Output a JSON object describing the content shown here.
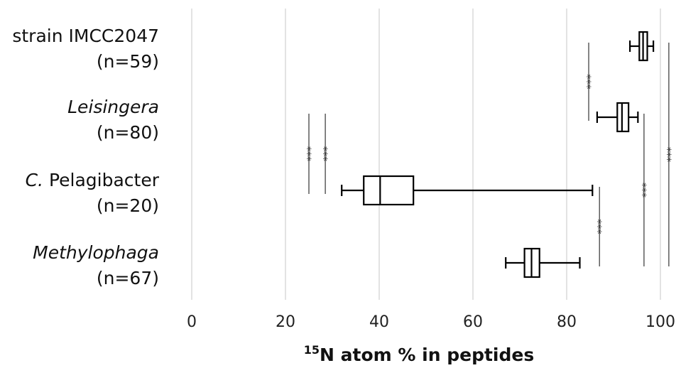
{
  "chart_data": {
    "type": "box",
    "orientation": "horizontal",
    "xlabel_sup": "15",
    "xlabel_main": "N atom % in peptides",
    "xlim": [
      0,
      100
    ],
    "xticks": [
      0,
      20,
      40,
      60,
      80,
      100
    ],
    "grid": "vertical",
    "categories": [
      {
        "name_pre": "strain IMCC2047",
        "name_italic": "",
        "name_post": "",
        "n_label": "(n=59)"
      },
      {
        "name_pre": "",
        "name_italic": "Leisingera",
        "name_post": "",
        "n_label": "(n=80)"
      },
      {
        "name_pre": "",
        "name_italic": "C.",
        "name_post": " Pelagibacter",
        "n_label": "(n=20)"
      },
      {
        "name_pre": "",
        "name_italic": "Methylophaga",
        "name_post": "",
        "n_label": "(n=67)"
      }
    ],
    "boxes": [
      {
        "min": 93.5,
        "q1": 95.5,
        "median": 96.3,
        "q3": 97.2,
        "max": 98.5
      },
      {
        "min": 86.5,
        "q1": 90.8,
        "median": 91.8,
        "q3": 93.2,
        "max": 95.2
      },
      {
        "min": 32.0,
        "q1": 36.7,
        "median": 40.2,
        "q3": 47.3,
        "max": 85.5
      },
      {
        "min": 67.0,
        "q1": 71.0,
        "median": 72.5,
        "q3": 74.2,
        "max": 82.8
      }
    ],
    "significance": [
      {
        "label": "***",
        "x": 25.0,
        "from": 1,
        "to": 2
      },
      {
        "label": "***",
        "x": 28.5,
        "from": 1,
        "to": 2
      },
      {
        "label": "***",
        "x": 84.7,
        "from": 0,
        "to": 1
      },
      {
        "label": "***",
        "x": 87.0,
        "from": 2,
        "to": 3
      },
      {
        "label": "***",
        "x": 96.5,
        "from": 1,
        "to": 3
      },
      {
        "label": "***",
        "x": 101.8,
        "from": 0,
        "to": 3
      }
    ]
  }
}
